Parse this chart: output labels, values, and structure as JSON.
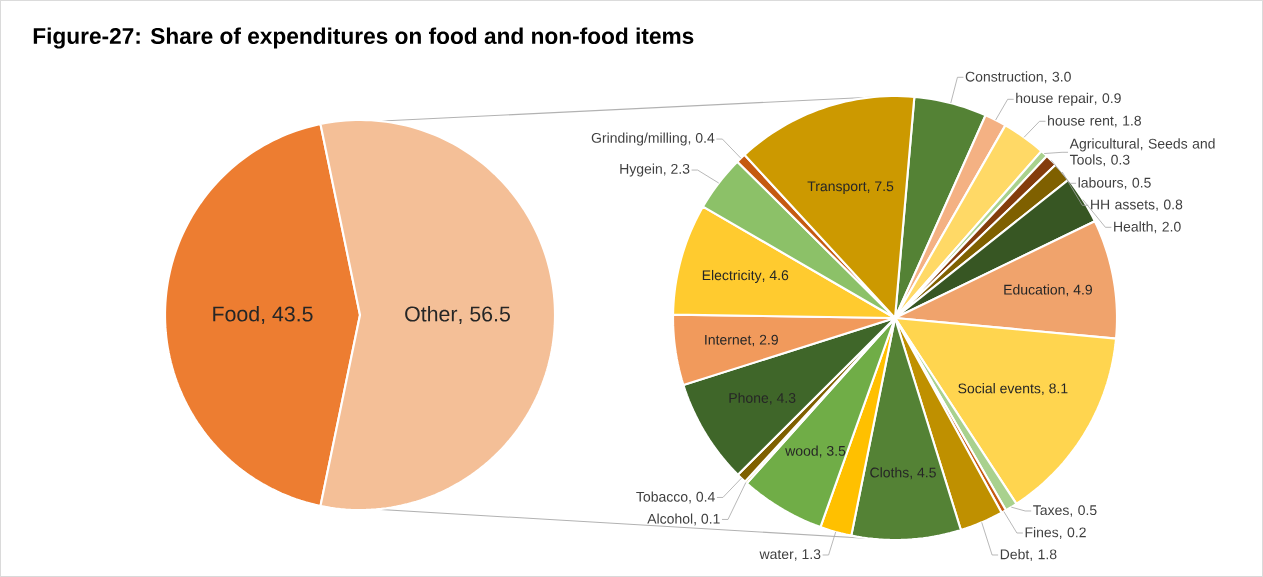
{
  "chart_data": [
    {
      "type": "pie",
      "title": "Figure-27: Share of expenditures on food and non-food items",
      "categories": [
        "Food",
        "Other"
      ],
      "values": [
        43.5,
        56.5
      ],
      "colors": [
        "#ed7d31",
        "#f4bf97"
      ],
      "value_labels": [
        ", 43.5",
        ", 56.5"
      ]
    },
    {
      "type": "pie",
      "categories": [
        "Construction",
        "house repair",
        "house rent",
        "Agricultural, Seeds and Tools",
        "labours",
        "HH assets",
        "Health",
        "Education",
        "Social events",
        "Taxes",
        "Fines",
        "Debt",
        "Cloths",
        "water",
        "wood",
        "Alcohol",
        "Tobacco",
        "Phone",
        "Internet",
        "Electricity",
        "Hygein",
        "Grinding/milling",
        "Transport"
      ],
      "values": [
        3.0,
        0.9,
        1.8,
        0.3,
        0.5,
        0.8,
        2.0,
        4.9,
        8.1,
        0.5,
        0.2,
        1.8,
        4.5,
        1.3,
        3.5,
        0.1,
        0.4,
        4.3,
        2.9,
        4.6,
        2.3,
        0.4,
        7.5
      ],
      "value_labels": [
        ", 3.0",
        ", 0.9",
        ", 1.8",
        ", 0.3",
        ", 0.5",
        ", 0.8",
        ", 2.0",
        ", 4.9",
        ", 8.1",
        ", 0.5",
        ", 0.2",
        ", 1.8",
        ", 4.5",
        ", 1.3",
        ", 3.5",
        ", 0.1",
        ", 0.4",
        ", 4.3",
        ", 2.9",
        ", 4.6",
        ", 2.3",
        ", 0.4",
        ", 7.5"
      ],
      "colors": [
        "#548235",
        "#f4b183",
        "#ffd966",
        "#a9d18e",
        "#843c0c",
        "#7f6000",
        "#375623",
        "#f0a36c",
        "#ffd54f",
        "#a9d18e",
        "#c55a11",
        "#bf9000",
        "#548235",
        "#ffc000",
        "#70ad47",
        "#c9a000",
        "#7f6000",
        "#3f6629",
        "#f19a5c",
        "#ffcb2f",
        "#8cc168",
        "#c55a11",
        "#cc9900"
      ]
    }
  ]
}
